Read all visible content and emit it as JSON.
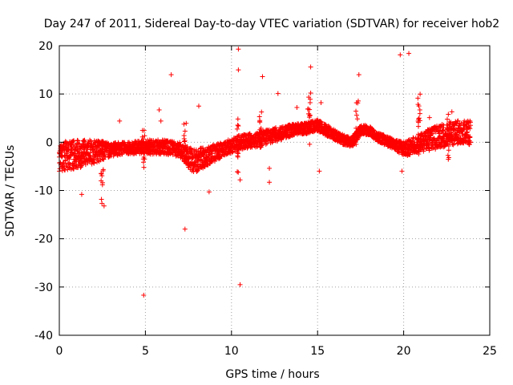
{
  "colors": {
    "series": "#ff0000",
    "grid": "#a0a0a0",
    "frame": "#000000",
    "background": "#ffffff"
  },
  "chart_data": {
    "type": "scatter",
    "title": "Day 247 of 2011, Sidereal Day-to-day VTEC variation (SDTVAR) for receiver hob2",
    "xlabel": "GPS time / hours",
    "ylabel": "SDTVAR / TECUs",
    "xlim": [
      0,
      25
    ],
    "ylim": [
      -40,
      20
    ],
    "x_ticks": [
      0,
      5,
      10,
      15,
      20,
      25
    ],
    "y_ticks": [
      -40,
      -30,
      -20,
      -10,
      0,
      10,
      20
    ],
    "x_tick_labels": [
      "0",
      "5",
      "10",
      "15",
      "20",
      "25"
    ],
    "y_tick_labels": [
      "-40",
      "-30",
      "-20",
      "-10",
      "0",
      "10",
      "20"
    ],
    "grid": true,
    "marker": "plus",
    "series": [
      {
        "name": "SDTVAR",
        "trend": [
          {
            "x": 0.0,
            "center": -3.0,
            "spread": 3.0
          },
          {
            "x": 1.0,
            "center": -2.5,
            "spread": 3.0
          },
          {
            "x": 2.0,
            "center": -2.0,
            "spread": 2.5
          },
          {
            "x": 3.0,
            "center": -1.5,
            "spread": 1.5
          },
          {
            "x": 4.0,
            "center": -1.2,
            "spread": 1.2
          },
          {
            "x": 5.0,
            "center": -1.0,
            "spread": 1.5
          },
          {
            "x": 6.0,
            "center": -1.0,
            "spread": 1.5
          },
          {
            "x": 7.0,
            "center": -1.5,
            "spread": 1.5
          },
          {
            "x": 7.8,
            "center": -4.0,
            "spread": 2.5
          },
          {
            "x": 8.5,
            "center": -3.0,
            "spread": 2.0
          },
          {
            "x": 9.5,
            "center": -1.5,
            "spread": 1.5
          },
          {
            "x": 10.5,
            "center": 0.0,
            "spread": 1.5
          },
          {
            "x": 11.5,
            "center": 0.5,
            "spread": 1.5
          },
          {
            "x": 12.5,
            "center": 1.5,
            "spread": 1.5
          },
          {
            "x": 13.5,
            "center": 2.5,
            "spread": 1.2
          },
          {
            "x": 14.5,
            "center": 3.0,
            "spread": 1.2
          },
          {
            "x": 15.0,
            "center": 3.5,
            "spread": 1.2
          },
          {
            "x": 15.5,
            "center": 2.5,
            "spread": 1.2
          },
          {
            "x": 16.5,
            "center": 0.5,
            "spread": 1.0
          },
          {
            "x": 17.0,
            "center": 0.0,
            "spread": 1.0
          },
          {
            "x": 17.5,
            "center": 2.5,
            "spread": 1.0
          },
          {
            "x": 18.0,
            "center": 2.5,
            "spread": 1.0
          },
          {
            "x": 18.5,
            "center": 1.0,
            "spread": 1.0
          },
          {
            "x": 19.5,
            "center": -0.5,
            "spread": 1.0
          },
          {
            "x": 20.0,
            "center": -1.5,
            "spread": 1.5
          },
          {
            "x": 21.0,
            "center": 0.0,
            "spread": 2.0
          },
          {
            "x": 22.0,
            "center": 1.0,
            "spread": 2.5
          },
          {
            "x": 23.0,
            "center": 2.0,
            "spread": 2.5
          },
          {
            "x": 23.9,
            "center": 2.0,
            "spread": 2.5
          }
        ],
        "spikes": [
          {
            "x": 2.5,
            "y": [
              -13,
              3.5
            ]
          },
          {
            "x": 4.9,
            "y": [
              -6,
              2.5
            ]
          },
          {
            "x": 7.3,
            "y": [
              -4,
              5
            ]
          },
          {
            "x": 10.4,
            "y": [
              -7.5,
              5
            ]
          },
          {
            "x": 11.7,
            "y": [
              -2,
              6.5
            ]
          },
          {
            "x": 14.5,
            "y": [
              -1,
              10
            ]
          },
          {
            "x": 17.3,
            "y": [
              -0.5,
              9
            ]
          },
          {
            "x": 20.9,
            "y": [
              -3,
              11
            ]
          },
          {
            "x": 22.6,
            "y": [
              -5.5,
              6.5
            ]
          }
        ],
        "outliers": [
          [
            0.7,
            -1
          ],
          [
            1.3,
            -10.8
          ],
          [
            2.6,
            -13.2
          ],
          [
            3.5,
            4.4
          ],
          [
            4.9,
            -31.7
          ],
          [
            5.8,
            6.7
          ],
          [
            5.9,
            4.4
          ],
          [
            6.5,
            14.0
          ],
          [
            7.3,
            -18.0
          ],
          [
            8.1,
            7.5
          ],
          [
            8.7,
            -10.3
          ],
          [
            10.4,
            19.3
          ],
          [
            10.4,
            15.0
          ],
          [
            10.5,
            -29.5
          ],
          [
            10.5,
            -7.8
          ],
          [
            11.8,
            13.6
          ],
          [
            12.2,
            -5.4
          ],
          [
            12.2,
            -8.3
          ],
          [
            12.7,
            10.1
          ],
          [
            13.8,
            7.2
          ],
          [
            14.6,
            15.6
          ],
          [
            14.6,
            10.2
          ],
          [
            15.1,
            -6.0
          ],
          [
            15.2,
            8.2
          ],
          [
            17.4,
            14.0
          ],
          [
            19.8,
            18.1
          ],
          [
            20.3,
            18.4
          ],
          [
            19.9,
            -6.0
          ],
          [
            21.5,
            5.1
          ],
          [
            22.8,
            6.3
          ]
        ]
      }
    ]
  }
}
